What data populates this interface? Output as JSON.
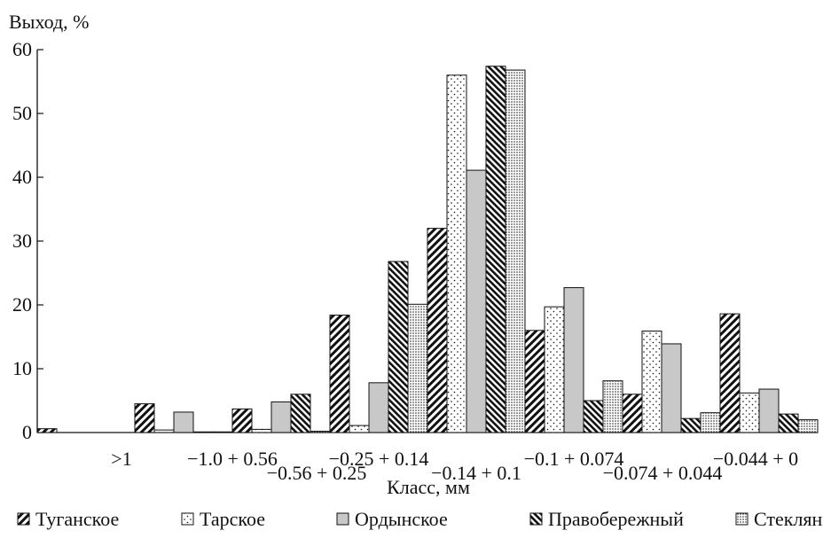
{
  "chart_data": {
    "type": "bar",
    "title": "",
    "ylabel": "Выход, %",
    "xlabel": "Класс, мм",
    "ylim": [
      0,
      60
    ],
    "yticks": [
      0,
      10,
      20,
      30,
      40,
      50,
      60
    ],
    "grid": false,
    "legend_position": "bottom",
    "categories": [
      ">1",
      "−1.0 + 0.56",
      "−0.56 + 0.25",
      "−0.25 + 0.14",
      "−0.14 + 0.1",
      "−0.1 + 0.074",
      "−0.074 + 0.044",
      "−0.044 + 0"
    ],
    "series": [
      {
        "name": "Туганское",
        "pattern": "hatch-forward",
        "values": [
          0.6,
          4.5,
          3.7,
          18.4,
          32.0,
          16.0,
          6.0,
          18.6
        ]
      },
      {
        "name": "Тарское",
        "pattern": "dots-sparse",
        "values": [
          0.0,
          0.4,
          0.5,
          1.1,
          56.0,
          19.7,
          15.9,
          6.2
        ]
      },
      {
        "name": "Ордынское",
        "pattern": "solid-gray",
        "values": [
          0.0,
          3.2,
          4.8,
          7.8,
          41.1,
          22.7,
          13.9,
          6.8
        ]
      },
      {
        "name": "Правобережный",
        "pattern": "hatch-back-dense",
        "values": [
          0.0,
          0.1,
          6.0,
          26.8,
          57.4,
          5.0,
          2.2,
          2.9
        ]
      },
      {
        "name": "Стеклянка",
        "pattern": "dots-dense",
        "values": [
          0.0,
          0.1,
          0.2,
          20.1,
          56.8,
          8.1,
          3.1,
          2.0
        ]
      }
    ],
    "colors": {
      "ink": "#111111",
      "gray_fill": "#c8c8c8"
    }
  }
}
